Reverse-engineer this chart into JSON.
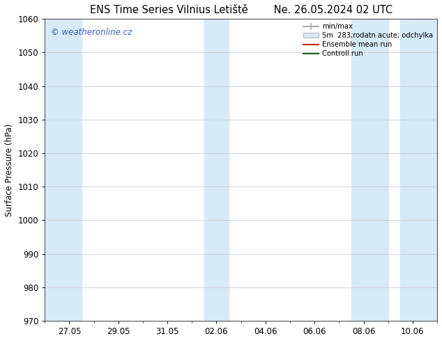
{
  "title": "ENS Time Series Vilnius Letiště        Ne. 26.05.2024 02 UTC",
  "ylabel": "Surface Pressure (hPa)",
  "ylim": [
    970,
    1060
  ],
  "yticks": [
    970,
    980,
    990,
    1000,
    1010,
    1020,
    1030,
    1040,
    1050,
    1060
  ],
  "x_tick_labels": [
    "27.05",
    "29.05",
    "31.05",
    "02.06",
    "04.06",
    "06.06",
    "08.06",
    "10.06"
  ],
  "x_tick_positions": [
    1,
    3,
    5,
    7,
    9,
    11,
    13,
    15
  ],
  "shaded_bands": [
    {
      "x_start": 0.0,
      "x_end": 1.5,
      "color": "#d6eaf8"
    },
    {
      "x_start": 6.5,
      "x_end": 7.5,
      "color": "#d6eaf8"
    },
    {
      "x_start": 12.5,
      "x_end": 14.0,
      "color": "#d6eaf8"
    },
    {
      "x_start": 14.5,
      "x_end": 16.0,
      "color": "#d6eaf8"
    }
  ],
  "watermark_text": "© weatheronline.cz",
  "watermark_color": "#3060cc",
  "legend_entries": [
    {
      "label": "min/max",
      "color": "#aaaaaa",
      "lw": 1.5,
      "type": "line_with_caps"
    },
    {
      "label": "Sm  283;rodatn acute; odchylka",
      "color": "#d6eaf8",
      "type": "patch"
    },
    {
      "label": "Ensemble mean run",
      "color": "#cc2200",
      "lw": 1.5,
      "type": "line"
    },
    {
      "label": "Controll run",
      "color": "#226622",
      "lw": 1.5,
      "type": "line"
    }
  ],
  "bg_color": "#ffffff",
  "plot_area_color": "#ffffff",
  "grid_color": "#cccccc",
  "spine_color": "#555555",
  "tick_label_fontsize": 8.5,
  "title_fontsize": 10.5,
  "ylabel_fontsize": 8.5,
  "x_range": [
    0,
    16
  ]
}
